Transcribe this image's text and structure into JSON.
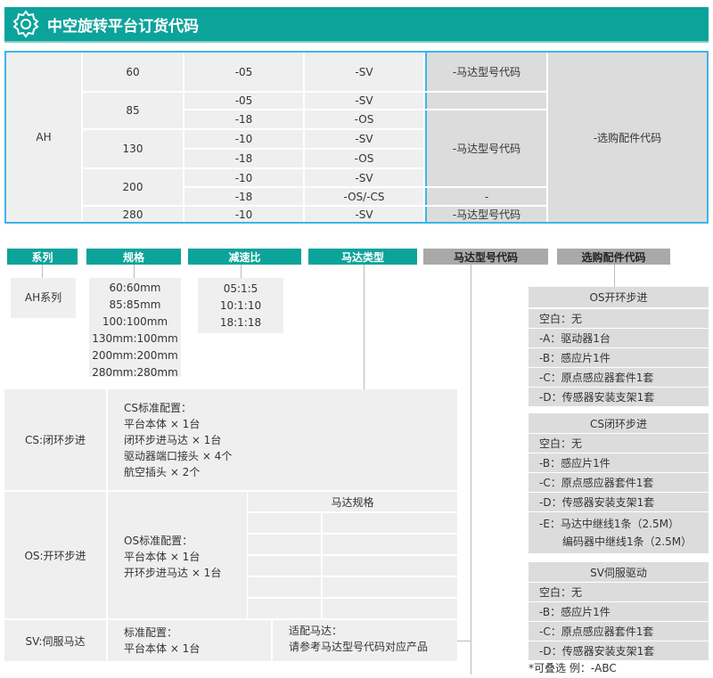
{
  "header": {
    "title": "中空旋转平台订货代码",
    "icon": "gear-icon",
    "color": "#0ca39a"
  },
  "order_table": {
    "series": "AH",
    "sizes": [
      "60",
      "85",
      "130",
      "200",
      "280"
    ],
    "ratios": [
      "-05",
      "-05",
      "-18",
      "-10",
      "-18",
      "-10",
      "-18",
      "-10"
    ],
    "motors": [
      "-SV",
      "-SV",
      "-OS",
      "-SV",
      "-OS",
      "-SV",
      "-OS/-CS",
      "-SV"
    ],
    "motor_code": [
      "-马达型号代码",
      "-马达型号代码",
      "-",
      "-马达型号代码"
    ],
    "accessory": "-选购配件代码"
  },
  "tags": [
    "系列",
    "规格",
    "减速比",
    "马达类型",
    "马达型号代码",
    "选购配件代码"
  ],
  "series_box": "AH系列",
  "size_options": [
    "60:60mm",
    "85:85mm",
    "100:100mm",
    "130mm:100mm",
    "200mm:200mm",
    "280mm:280mm"
  ],
  "ratio_options": [
    "05:1:5",
    "10:1:10",
    "18:1:18"
  ],
  "motor_types": {
    "cs": {
      "label": "CS:闭环步进",
      "config": [
        "CS标准配置：",
        "平台本体 × 1台",
        "闭环步进马达 × 1台",
        "驱动器端口接头 × 4个",
        "航空插头 × 2个"
      ]
    },
    "os": {
      "label": "OS:开环步进",
      "config": [
        "OS标准配置：",
        "平台本体 × 1台",
        "开环步进马达 × 1台"
      ],
      "spec_header": "马达规格"
    },
    "sv": {
      "label": "SV:伺服马达",
      "config": [
        "标准配置：",
        "平台本体 × 1台"
      ],
      "adapt": [
        "适配马达：",
        "请参考马达型号代码对应产品"
      ]
    }
  },
  "accessories": {
    "os": {
      "title": "OS开环步进",
      "items": [
        "空白：无",
        "-A：驱动器1台",
        "-B：感应片1件",
        "-C：原点感应器套件1套",
        "-D：传感器安装支架1套"
      ]
    },
    "cs": {
      "title": "CS闭环步进",
      "items": [
        "空白：无",
        "-B：感应片1件",
        "-C：原点感应器套件1套",
        "-D：传感器安装支架1套",
        "-E：马达中继线1条（2.5M）",
        "编码器中继线1条（2.5M）"
      ]
    },
    "sv": {
      "title": "SV伺服驱动",
      "items": [
        "空白：无",
        "-B：感应片1件",
        "-C：原点感应器套件1套",
        "-D：传感器安装支架1套"
      ]
    },
    "note": "*可叠选   例：-ABC"
  }
}
